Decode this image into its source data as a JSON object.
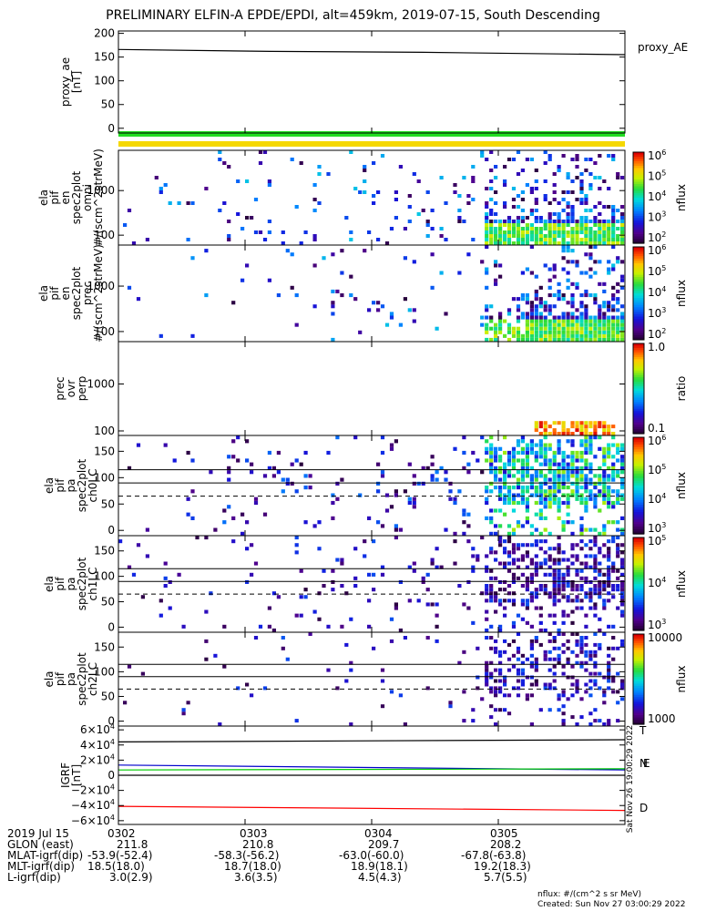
{
  "title": "PRELIMINARY ELFIN-A EPDE/EPDI, alt=459km, 2019-07-15, South Descending",
  "chart_data": {
    "type": "spectrogram-stack",
    "panels": [
      {
        "id": "proxy_ae",
        "type": "line",
        "ylabel": [
          "proxy_ae",
          "[nT]"
        ],
        "right_label": "proxy_AE",
        "ylim": [
          -10,
          205
        ],
        "yticks": [
          0,
          50,
          100,
          150,
          200
        ],
        "series": [
          {
            "x": [
              0,
              0.3,
              0.6,
              1.0
            ],
            "y": [
              166,
              162,
              160,
              155
            ],
            "color": "#000000"
          }
        ]
      },
      {
        "id": "en_omni",
        "type": "heatmap",
        "ylabel": [
          "ela",
          "pif",
          "en",
          "spec2plot",
          "omni",
          "#/(scm^2strMeV)"
        ],
        "yscale": "log",
        "ylim": [
          60,
          8000
        ],
        "yticks": [
          100,
          1000
        ],
        "ytick_labels": [
          "100",
          "1000"
        ],
        "colorbar": {
          "label": "nflux",
          "scale": "log",
          "ticks": [
            "10^6",
            "10^5",
            "10^4",
            "10^3",
            "10^2"
          ],
          "range": [
            100,
            1000000
          ]
        }
      },
      {
        "id": "en_prec",
        "type": "heatmap",
        "ylabel": [
          "ela",
          "pif",
          "en",
          "spec2plot",
          "prec",
          "#/(scm^2strMeV)"
        ],
        "yscale": "log",
        "ylim": [
          60,
          8000
        ],
        "yticks": [
          100,
          1000
        ],
        "ytick_labels": [
          "100",
          "1000"
        ],
        "colorbar": {
          "label": "nflux",
          "scale": "log",
          "ticks": [
            "10^6",
            "10^5",
            "10^4",
            "10^3",
            "10^2"
          ],
          "range": [
            100,
            1000000
          ]
        }
      },
      {
        "id": "prec_ovr_perp",
        "type": "heatmap",
        "ylabel": [
          "prec",
          "ovr",
          "perp"
        ],
        "yscale": "log",
        "ylim": [
          80,
          8000
        ],
        "yticks": [
          100,
          1000
        ],
        "ytick_labels": [
          "100",
          "1000"
        ],
        "colorbar": {
          "label": "ratio",
          "scale": "log",
          "ticks": [
            "1.0",
            "0.1"
          ],
          "range": [
            0.01,
            1.0
          ]
        }
      },
      {
        "id": "pa_ch0",
        "type": "heatmap",
        "ylabel": [
          "ela",
          "pif",
          "pa",
          "spec2plot",
          "ch0LC"
        ],
        "ylim": [
          -10,
          180
        ],
        "yticks": [
          0,
          50,
          100,
          150
        ],
        "ref_lines": [
          {
            "y": 115,
            "style": "solid"
          },
          {
            "y": 90,
            "style": "solid"
          },
          {
            "y": 65,
            "style": "dashed"
          }
        ],
        "colorbar": {
          "label": "nflux",
          "scale": "log",
          "ticks": [
            "10^6",
            "10^5",
            "10^4",
            "10^3"
          ],
          "range": [
            1000,
            1000000
          ]
        }
      },
      {
        "id": "pa_ch1",
        "type": "heatmap",
        "ylabel": [
          "ela",
          "pif",
          "pa",
          "spec2plot",
          "ch1LC"
        ],
        "ylim": [
          -10,
          180
        ],
        "yticks": [
          0,
          50,
          100,
          150
        ],
        "ref_lines": [
          {
            "y": 115,
            "style": "solid"
          },
          {
            "y": 90,
            "style": "solid"
          },
          {
            "y": 65,
            "style": "dashed"
          }
        ],
        "colorbar": {
          "label": "nflux",
          "scale": "log",
          "ticks": [
            "10^5",
            "10^4",
            "10^3"
          ],
          "range": [
            1000,
            100000
          ]
        }
      },
      {
        "id": "pa_ch2",
        "type": "heatmap",
        "ylabel": [
          "ela",
          "pif",
          "pa",
          "spec2plot",
          "ch2LC"
        ],
        "ylim": [
          -10,
          180
        ],
        "yticks": [
          0,
          50,
          100,
          150
        ],
        "ref_lines": [
          {
            "y": 115,
            "style": "solid"
          },
          {
            "y": 90,
            "style": "solid"
          },
          {
            "y": 65,
            "style": "dashed"
          }
        ],
        "colorbar": {
          "label": "nflux",
          "scale": "log",
          "ticks": [
            "10000",
            "1000"
          ],
          "range": [
            300,
            20000
          ]
        }
      },
      {
        "id": "igrf",
        "type": "line",
        "ylabel": [
          "IGRF",
          "[nT]"
        ],
        "ylim": [
          -65000,
          65000
        ],
        "yticks": [
          60000,
          40000,
          20000,
          0,
          -20000,
          -40000,
          -60000
        ],
        "ytick_labels": [
          "6×10^4",
          "4×10^4",
          "2×10^4",
          "0",
          "−2×10^4",
          "−4×10^4",
          "−6×10^4"
        ],
        "right_labels": [
          {
            "text": "T",
            "color": "#000000"
          },
          {
            "text": "N",
            "color": "#00bb00"
          },
          {
            "text": "E",
            "color": "#0000ff"
          },
          {
            "text": "D",
            "color": "#ff0000"
          }
        ],
        "series": [
          {
            "name": "T",
            "color": "#000000",
            "x": [
              0,
              1
            ],
            "y": [
              44000,
              47000
            ]
          },
          {
            "name": "E",
            "color": "#0000cc",
            "x": [
              0,
              1
            ],
            "y": [
              13500,
              7000
            ]
          },
          {
            "name": "N",
            "color": "#00cc00",
            "x": [
              0,
              1
            ],
            "y": [
              7000,
              8500
            ]
          },
          {
            "name": "zero",
            "color": "#000000",
            "x": [
              0,
              1
            ],
            "y": [
              0,
              0
            ]
          },
          {
            "name": "D",
            "color": "#ff0000",
            "x": [
              0,
              1
            ],
            "y": [
              -41000,
              -46500
            ]
          }
        ]
      }
    ],
    "time_ticks": [
      "0302",
      "0303",
      "0304",
      "0305"
    ],
    "time_tick_fraction": [
      0.0,
      0.25,
      0.5,
      0.75
    ],
    "status_bars": [
      {
        "color": "#22dd22"
      },
      {
        "color": "#f5d800"
      }
    ]
  },
  "footer": {
    "date": "2019 Jul 15",
    "rows": [
      {
        "label": "GLON (east)",
        "values": [
          "211.8",
          "210.8",
          "209.7",
          "208.2"
        ]
      },
      {
        "label": "MLAT-igrf(dip)",
        "values": [
          "-53.9(-52.4)",
          "-58.3(-56.2)",
          "-63.0(-60.0)",
          "-67.8(-63.8)"
        ]
      },
      {
        "label": "MLT-igrf(dip)",
        "values": [
          "18.5(18.0)",
          "18.7(18.0)",
          "18.9(18.1)",
          "19.2(18.3)"
        ]
      },
      {
        "label": "L-igrf(dip)",
        "values": [
          "3.0(2.9)",
          "3.6(3.5)",
          "4.5(4.3)",
          "5.7(5.5)"
        ]
      }
    ],
    "note_units": "nflux: #/(cm^2 s sr MeV)",
    "note_created": "Created: Sun Nov 27 03:00:29 2022",
    "side_stamp": "Sat Nov 26 19:00:29 2022"
  }
}
